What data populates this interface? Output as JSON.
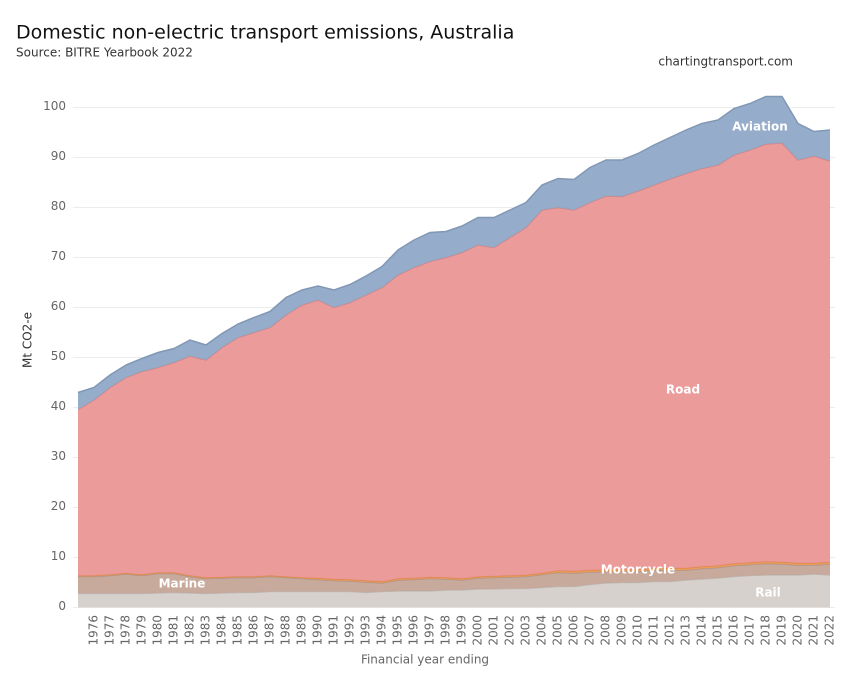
{
  "chart_data": {
    "type": "stacked_area",
    "title": "Domestic non-electric transport emissions, Australia",
    "subtitle": "Source: BITRE Yearbook 2022",
    "annotation": "chartingtransport.com",
    "y_label": "Mt CO2-e",
    "x_label": "Financial year ending",
    "x": [
      1975,
      1976,
      1977,
      1978,
      1979,
      1980,
      1981,
      1982,
      1983,
      1984,
      1985,
      1986,
      1987,
      1988,
      1989,
      1990,
      1991,
      1992,
      1993,
      1994,
      1995,
      1996,
      1997,
      1998,
      1999,
      2000,
      2001,
      2002,
      2003,
      2004,
      2005,
      2006,
      2007,
      2008,
      2009,
      2010,
      2011,
      2012,
      2013,
      2014,
      2015,
      2016,
      2017,
      2018,
      2019,
      2020,
      2021,
      2022
    ],
    "xlim": [
      1975,
      2022
    ],
    "xticks": [
      1976,
      1977,
      1978,
      1979,
      1980,
      1981,
      1982,
      1983,
      1984,
      1985,
      1986,
      1987,
      1988,
      1989,
      1990,
      1991,
      1992,
      1993,
      1994,
      1995,
      1996,
      1997,
      1998,
      1999,
      2000,
      2001,
      2002,
      2003,
      2004,
      2005,
      2006,
      2007,
      2008,
      2009,
      2010,
      2011,
      2012,
      2013,
      2014,
      2015,
      2016,
      2017,
      2018,
      2019,
      2020,
      2021,
      2022
    ],
    "ylim": [
      -0.5,
      105.5
    ],
    "yticks": [
      0,
      10,
      20,
      30,
      40,
      50,
      60,
      70,
      80,
      90,
      100
    ],
    "grid": true,
    "series": [
      {
        "name": "Rail",
        "color": "#d5cfcb",
        "values": [
          2.8,
          2.8,
          2.8,
          2.8,
          2.8,
          2.9,
          3.0,
          2.9,
          2.8,
          2.9,
          3.0,
          3.0,
          3.2,
          3.2,
          3.2,
          3.2,
          3.2,
          3.2,
          3.0,
          3.2,
          3.3,
          3.3,
          3.3,
          3.5,
          3.5,
          3.7,
          3.7,
          3.8,
          3.8,
          4.0,
          4.2,
          4.2,
          4.6,
          4.9,
          5.0,
          5.0,
          5.2,
          5.2,
          5.5,
          5.7,
          5.9,
          6.2,
          6.4,
          6.5,
          6.5,
          6.5,
          6.7,
          6.5
        ]
      },
      {
        "name": "Marine",
        "color": "#c4a597",
        "values": [
          3.4,
          3.4,
          3.6,
          3.9,
          3.6,
          3.9,
          3.8,
          3.3,
          3.0,
          3.0,
          3.0,
          3.0,
          3.0,
          2.8,
          2.6,
          2.4,
          2.2,
          2.1,
          2.1,
          1.7,
          2.2,
          2.3,
          2.5,
          2.2,
          2.0,
          2.2,
          2.3,
          2.3,
          2.4,
          2.6,
          2.8,
          2.7,
          2.5,
          2.3,
          2.2,
          2.2,
          2.3,
          2.3,
          2.0,
          2.1,
          2.1,
          2.2,
          2.2,
          2.3,
          2.2,
          2.0,
          1.8,
          2.2
        ]
      },
      {
        "name": "Motorcycle",
        "color": "#f19a55",
        "values": [
          0.2,
          0.2,
          0.2,
          0.2,
          0.2,
          0.2,
          0.2,
          0.2,
          0.2,
          0.2,
          0.2,
          0.2,
          0.2,
          0.2,
          0.2,
          0.3,
          0.3,
          0.3,
          0.3,
          0.3,
          0.3,
          0.3,
          0.3,
          0.3,
          0.3,
          0.3,
          0.3,
          0.3,
          0.3,
          0.3,
          0.4,
          0.4,
          0.4,
          0.4,
          0.4,
          0.4,
          0.4,
          0.4,
          0.4,
          0.4,
          0.4,
          0.4,
          0.4,
          0.4,
          0.4,
          0.4,
          0.4,
          0.4
        ]
      },
      {
        "name": "Road",
        "color": "#eb9696",
        "values": [
          33.2,
          35.1,
          37.4,
          39.1,
          40.6,
          41.0,
          42.0,
          43.9,
          43.5,
          45.9,
          47.8,
          48.8,
          49.6,
          52.3,
          54.5,
          55.6,
          54.3,
          55.4,
          57.1,
          58.8,
          60.7,
          62.1,
          63.1,
          64.0,
          65.2,
          66.3,
          65.7,
          67.6,
          69.5,
          72.6,
          72.6,
          72.2,
          73.5,
          74.7,
          74.6,
          75.7,
          76.6,
          77.8,
          78.9,
          79.6,
          80.1,
          81.7,
          82.5,
          83.5,
          83.8,
          80.6,
          81.4,
          80.2
        ]
      },
      {
        "name": "Aviation",
        "color": "#8fa8c8",
        "values": [
          3.4,
          2.5,
          2.5,
          2.5,
          2.6,
          3.0,
          2.8,
          3.2,
          3.0,
          2.8,
          2.7,
          3.0,
          3.2,
          3.5,
          3.0,
          2.8,
          3.5,
          3.6,
          3.8,
          4.2,
          5.0,
          5.5,
          5.8,
          5.2,
          5.3,
          5.5,
          6.0,
          5.5,
          5.0,
          5.0,
          5.8,
          6.1,
          7.0,
          7.2,
          7.3,
          7.5,
          8.0,
          8.3,
          8.7,
          9.0,
          9.0,
          9.3,
          9.3,
          9.5,
          9.3,
          7.3,
          4.9,
          6.2
        ]
      }
    ]
  }
}
